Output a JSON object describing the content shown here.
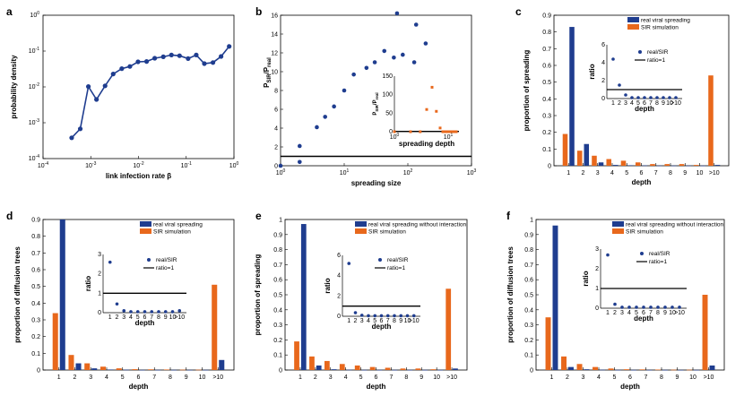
{
  "colors": {
    "blue": "#1f3d8f",
    "orange": "#e8681c",
    "axis": "#000000"
  },
  "chart_data": [
    {
      "id": "a",
      "panel_label": "a",
      "type": "line",
      "xscale": "log",
      "yscale": "log",
      "xlabel": "link infection rate β",
      "ylabel": "probability density",
      "xlim_exp": [
        -4,
        0
      ],
      "ylim_exp": [
        -4,
        0
      ],
      "x_ticks": [
        {
          "label": "10",
          "sup": "-4"
        },
        {
          "label": "10",
          "sup": "-3"
        },
        {
          "label": "10",
          "sup": "-2"
        },
        {
          "label": "10",
          "sup": "-1"
        },
        {
          "label": "10",
          "sup": "0"
        }
      ],
      "y_ticks": [
        {
          "label": "10",
          "sup": "-4"
        },
        {
          "label": "10",
          "sup": "-3"
        },
        {
          "label": "10",
          "sup": "-2"
        },
        {
          "label": "10",
          "sup": "-1"
        },
        {
          "label": "10",
          "sup": "0"
        }
      ],
      "series_log10": [
        [
          -3.4,
          -3.42
        ],
        [
          -3.22,
          -3.17
        ],
        [
          -3.05,
          -1.99
        ],
        [
          -2.88,
          -2.35
        ],
        [
          -2.7,
          -1.97
        ],
        [
          -2.53,
          -1.64
        ],
        [
          -2.35,
          -1.49
        ],
        [
          -2.18,
          -1.43
        ],
        [
          -2.01,
          -1.3
        ],
        [
          -1.83,
          -1.29
        ],
        [
          -1.66,
          -1.2
        ],
        [
          -1.48,
          -1.16
        ],
        [
          -1.31,
          -1.11
        ],
        [
          -1.14,
          -1.13
        ],
        [
          -0.96,
          -1.21
        ],
        [
          -0.79,
          -1.11
        ],
        [
          -0.62,
          -1.35
        ],
        [
          -0.44,
          -1.32
        ],
        [
          -0.27,
          -1.15
        ],
        [
          -0.1,
          -0.87
        ]
      ]
    },
    {
      "id": "b",
      "panel_label": "b",
      "type": "scatter",
      "xscale": "log",
      "xlabel": "spreading size",
      "ylabel_main": "P",
      "ylabel_sub1": "SIR",
      "ylabel_mid": "/P",
      "ylabel_sub2": "real",
      "xlim_exp": [
        0,
        3
      ],
      "ylim": [
        0,
        16
      ],
      "x_ticks": [
        {
          "label": "10",
          "sup": "0"
        },
        {
          "label": "10",
          "sup": "1"
        },
        {
          "label": "10",
          "sup": "2"
        },
        {
          "label": "10",
          "sup": "3"
        }
      ],
      "y_ticks": [
        "0",
        "2",
        "4",
        "6",
        "8",
        "10",
        "12",
        "14",
        "16"
      ],
      "reference_y": 1,
      "points_log10": [
        [
          0,
          0
        ],
        [
          0.3,
          0.4
        ],
        [
          0.3,
          2.1
        ],
        [
          0.57,
          4.1
        ],
        [
          0.7,
          5.2
        ],
        [
          0.84,
          6.3
        ],
        [
          1.0,
          8.0
        ],
        [
          1.15,
          9.7
        ],
        [
          1.35,
          10.4
        ],
        [
          1.48,
          11.0
        ],
        [
          1.63,
          12.2
        ],
        [
          1.78,
          11.5
        ],
        [
          1.92,
          11.8
        ],
        [
          2.1,
          11.0
        ],
        [
          1.83,
          16.2
        ],
        [
          2.13,
          15.0
        ],
        [
          2.28,
          13.0
        ]
      ],
      "inset": {
        "xlabel": "spreading depth",
        "ylabel_main": "P",
        "ylabel_sub1": "SIR",
        "ylabel_mid": "/P",
        "ylabel_sub2": "real",
        "xlim_exp": [
          0,
          1.2
        ],
        "ylim": [
          0,
          150
        ],
        "x_ticks": [
          {
            "label": "10",
            "sup": "0"
          },
          {
            "label": "10",
            "sup": "1"
          }
        ],
        "y_ticks": [
          "0",
          "50",
          "100",
          "150"
        ],
        "reference_y": 1,
        "points_log10": [
          [
            0,
            0
          ],
          [
            0.3,
            0
          ],
          [
            0.48,
            0
          ],
          [
            0.6,
            60
          ],
          [
            0.7,
            120
          ],
          [
            0.78,
            55
          ],
          [
            0.85,
            10
          ],
          [
            0.9,
            0
          ],
          [
            0.95,
            0
          ],
          [
            1.0,
            0
          ],
          [
            1.04,
            0
          ],
          [
            1.08,
            0
          ],
          [
            1.11,
            0
          ],
          [
            1.15,
            0
          ]
        ]
      }
    },
    {
      "id": "c",
      "panel_label": "c",
      "type": "bar",
      "xlabel": "depth",
      "ylabel": "proportion of spreading",
      "ylim": [
        0,
        0.9
      ],
      "categories": [
        "1",
        "2",
        "3",
        "4",
        "5",
        "6",
        "7",
        "8",
        "9",
        "10",
        ">10"
      ],
      "y_ticks": [
        "0",
        "0.1",
        "0.2",
        "0.3",
        "0.4",
        "0.5",
        "0.6",
        "0.7",
        "0.8",
        "0.9"
      ],
      "series": [
        {
          "name": "real viral spreading",
          "color_key": "blue",
          "values": [
            0.83,
            0.13,
            0.02,
            0.005,
            0.003,
            0.002,
            0.001,
            0.001,
            0.001,
            0.001,
            0.005
          ]
        },
        {
          "name": "SIR simulation",
          "color_key": "orange",
          "values": [
            0.19,
            0.09,
            0.06,
            0.04,
            0.03,
            0.02,
            0.01,
            0.01,
            0.01,
            0.005,
            0.54
          ]
        }
      ],
      "inset": {
        "xlabel": "depth",
        "ylabel": "ratio",
        "ylim": [
          0,
          6
        ],
        "y_ticks": [
          "0",
          "2",
          "4",
          "6"
        ],
        "categories": [
          "1",
          "2",
          "3",
          "4",
          "5",
          "6",
          "7",
          "8",
          "9",
          "10",
          ">10"
        ],
        "values": [
          4.4,
          1.5,
          0.4,
          0.1,
          0.1,
          0.1,
          0.1,
          0.1,
          0.1,
          0.1,
          0.1
        ],
        "reference_y": 1,
        "legend_points": "real/SIR",
        "legend_line": "ratio=1"
      }
    },
    {
      "id": "d",
      "panel_label": "d",
      "type": "bar",
      "xlabel": "depth",
      "ylabel": "proportion of diffusion trees",
      "ylim": [
        0,
        0.9
      ],
      "categories": [
        "1",
        "2",
        "3",
        "4",
        "5",
        "6",
        "7",
        "8",
        "9",
        "10",
        ">10"
      ],
      "y_ticks": [
        "0",
        "0.1",
        "0.2",
        "0.3",
        "0.4",
        "0.5",
        "0.6",
        "0.7",
        "0.8",
        "0.9"
      ],
      "series": [
        {
          "name": "real viral spreading",
          "color_key": "blue",
          "values": [
            0.9,
            0.04,
            0.01,
            0.003,
            0.002,
            0.001,
            0.001,
            0.001,
            0.001,
            0.001,
            0.06
          ]
        },
        {
          "name": "SIR simulation",
          "color_key": "orange",
          "values": [
            0.34,
            0.09,
            0.04,
            0.02,
            0.01,
            0.005,
            0.004,
            0.003,
            0.002,
            0.002,
            0.51
          ]
        }
      ],
      "inset": {
        "xlabel": "depth",
        "ylabel": "ratio",
        "ylim": [
          0,
          3
        ],
        "y_ticks": [
          "0",
          "1",
          "2",
          "3"
        ],
        "categories": [
          "1",
          "2",
          "3",
          "4",
          "5",
          "6",
          "7",
          "8",
          "9",
          "10",
          ">10"
        ],
        "values": [
          2.6,
          0.45,
          0.1,
          0.05,
          0.05,
          0.05,
          0.05,
          0.05,
          0.05,
          0.05,
          0.1
        ],
        "reference_y": 1,
        "legend_points": "real/SIR",
        "legend_line": "ratio=1"
      }
    },
    {
      "id": "e",
      "panel_label": "e",
      "type": "bar",
      "xlabel": "depth",
      "ylabel": "proportion of spreading",
      "ylim": [
        0,
        1
      ],
      "categories": [
        "1",
        "2",
        "3",
        "4",
        "5",
        "6",
        "7",
        "8",
        "9",
        "10",
        ">10"
      ],
      "y_ticks": [
        "0",
        "0.1",
        "0.2",
        "0.3",
        "0.4",
        "0.5",
        "0.6",
        "0.7",
        "0.8",
        "0.9",
        "1"
      ],
      "series": [
        {
          "name": "real viral spreading without interaction",
          "color_key": "blue",
          "values": [
            0.97,
            0.03,
            0.005,
            0.002,
            0.001,
            0.001,
            0.001,
            0.001,
            0.001,
            0.001,
            0.01
          ]
        },
        {
          "name": "SIR simulation",
          "color_key": "orange",
          "values": [
            0.19,
            0.09,
            0.06,
            0.04,
            0.03,
            0.02,
            0.015,
            0.01,
            0.01,
            0.005,
            0.54
          ]
        }
      ],
      "inset": {
        "xlabel": "depth",
        "ylabel": "ratio",
        "ylim": [
          0,
          6
        ],
        "y_ticks": [
          "0",
          "2",
          "4",
          "6"
        ],
        "categories": [
          "1",
          "2",
          "3",
          "4",
          "5",
          "6",
          "7",
          "8",
          "9",
          "10",
          ">10"
        ],
        "values": [
          5.2,
          0.35,
          0.1,
          0.05,
          0.05,
          0.05,
          0.05,
          0.05,
          0.05,
          0.05,
          0.05
        ],
        "reference_y": 1,
        "legend_points": "real/SIR",
        "legend_line": "ratio=1"
      }
    },
    {
      "id": "f",
      "panel_label": "f",
      "type": "bar",
      "xlabel": "depth",
      "ylabel": "proportion of diffusion trees",
      "ylim": [
        0,
        1
      ],
      "categories": [
        "1",
        "2",
        "3",
        "4",
        "5",
        "6",
        "7",
        "8",
        "9",
        "10",
        ">10"
      ],
      "y_ticks": [
        "0",
        "0.1",
        "0.2",
        "0.3",
        "0.4",
        "0.5",
        "0.6",
        "0.7",
        "0.8",
        "0.9",
        "1"
      ],
      "series": [
        {
          "name": "real viral spreading without interaction",
          "color_key": "blue",
          "values": [
            0.96,
            0.02,
            0.005,
            0.002,
            0.001,
            0.001,
            0.001,
            0.001,
            0.001,
            0.001,
            0.03
          ]
        },
        {
          "name": "SIR simulation",
          "color_key": "orange",
          "values": [
            0.35,
            0.09,
            0.04,
            0.02,
            0.01,
            0.005,
            0.004,
            0.003,
            0.002,
            0.002,
            0.5
          ]
        }
      ],
      "inset": {
        "xlabel": "depth",
        "ylabel": "ratio",
        "ylim": [
          0,
          3
        ],
        "y_ticks": [
          "0",
          "1",
          "2",
          "3"
        ],
        "categories": [
          "1",
          "2",
          "3",
          "4",
          "5",
          "6",
          "7",
          "8",
          "9",
          "10",
          ">10"
        ],
        "values": [
          2.7,
          0.2,
          0.05,
          0.05,
          0.05,
          0.05,
          0.05,
          0.05,
          0.05,
          0.05,
          0.05
        ],
        "reference_y": 1,
        "legend_points": "real/SIR",
        "legend_line": "ratio=1"
      }
    }
  ]
}
